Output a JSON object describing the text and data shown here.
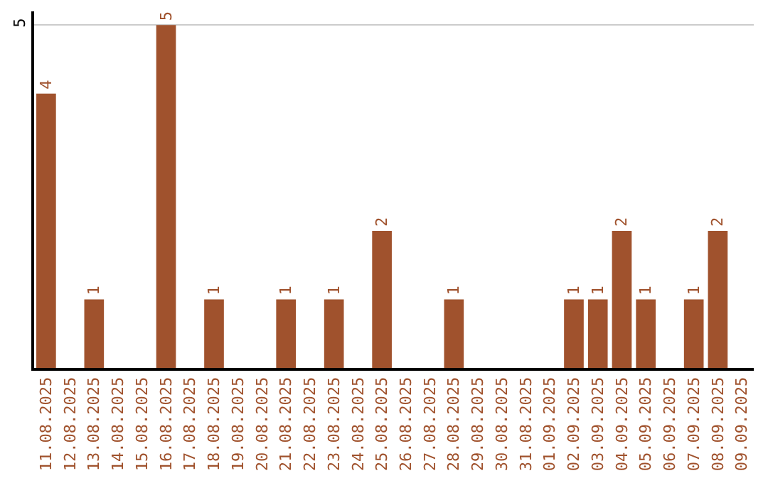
{
  "chart_data": {
    "type": "bar",
    "categories": [
      "11.08.2025",
      "12.08.2025",
      "13.08.2025",
      "14.08.2025",
      "15.08.2025",
      "16.08.2025",
      "17.08.2025",
      "18.08.2025",
      "19.08.2025",
      "20.08.2025",
      "21.08.2025",
      "22.08.2025",
      "23.08.2025",
      "24.08.2025",
      "25.08.2025",
      "26.08.2025",
      "27.08.2025",
      "28.08.2025",
      "29.08.2025",
      "30.08.2025",
      "31.08.2025",
      "01.09.2025",
      "02.09.2025",
      "03.09.2025",
      "04.09.2025",
      "05.09.2025",
      "06.09.2025",
      "07.09.2025",
      "08.09.2025",
      "09.09.2025"
    ],
    "values": [
      4,
      null,
      1,
      null,
      null,
      5,
      null,
      1,
      null,
      null,
      1,
      null,
      1,
      null,
      2,
      null,
      null,
      1,
      null,
      null,
      null,
      null,
      1,
      1,
      2,
      1,
      null,
      1,
      2,
      null
    ],
    "color": "#a0522d",
    "ylim": [
      0,
      5.2
    ],
    "yticks": [
      5
    ],
    "grid": "y",
    "data_labels": true
  }
}
